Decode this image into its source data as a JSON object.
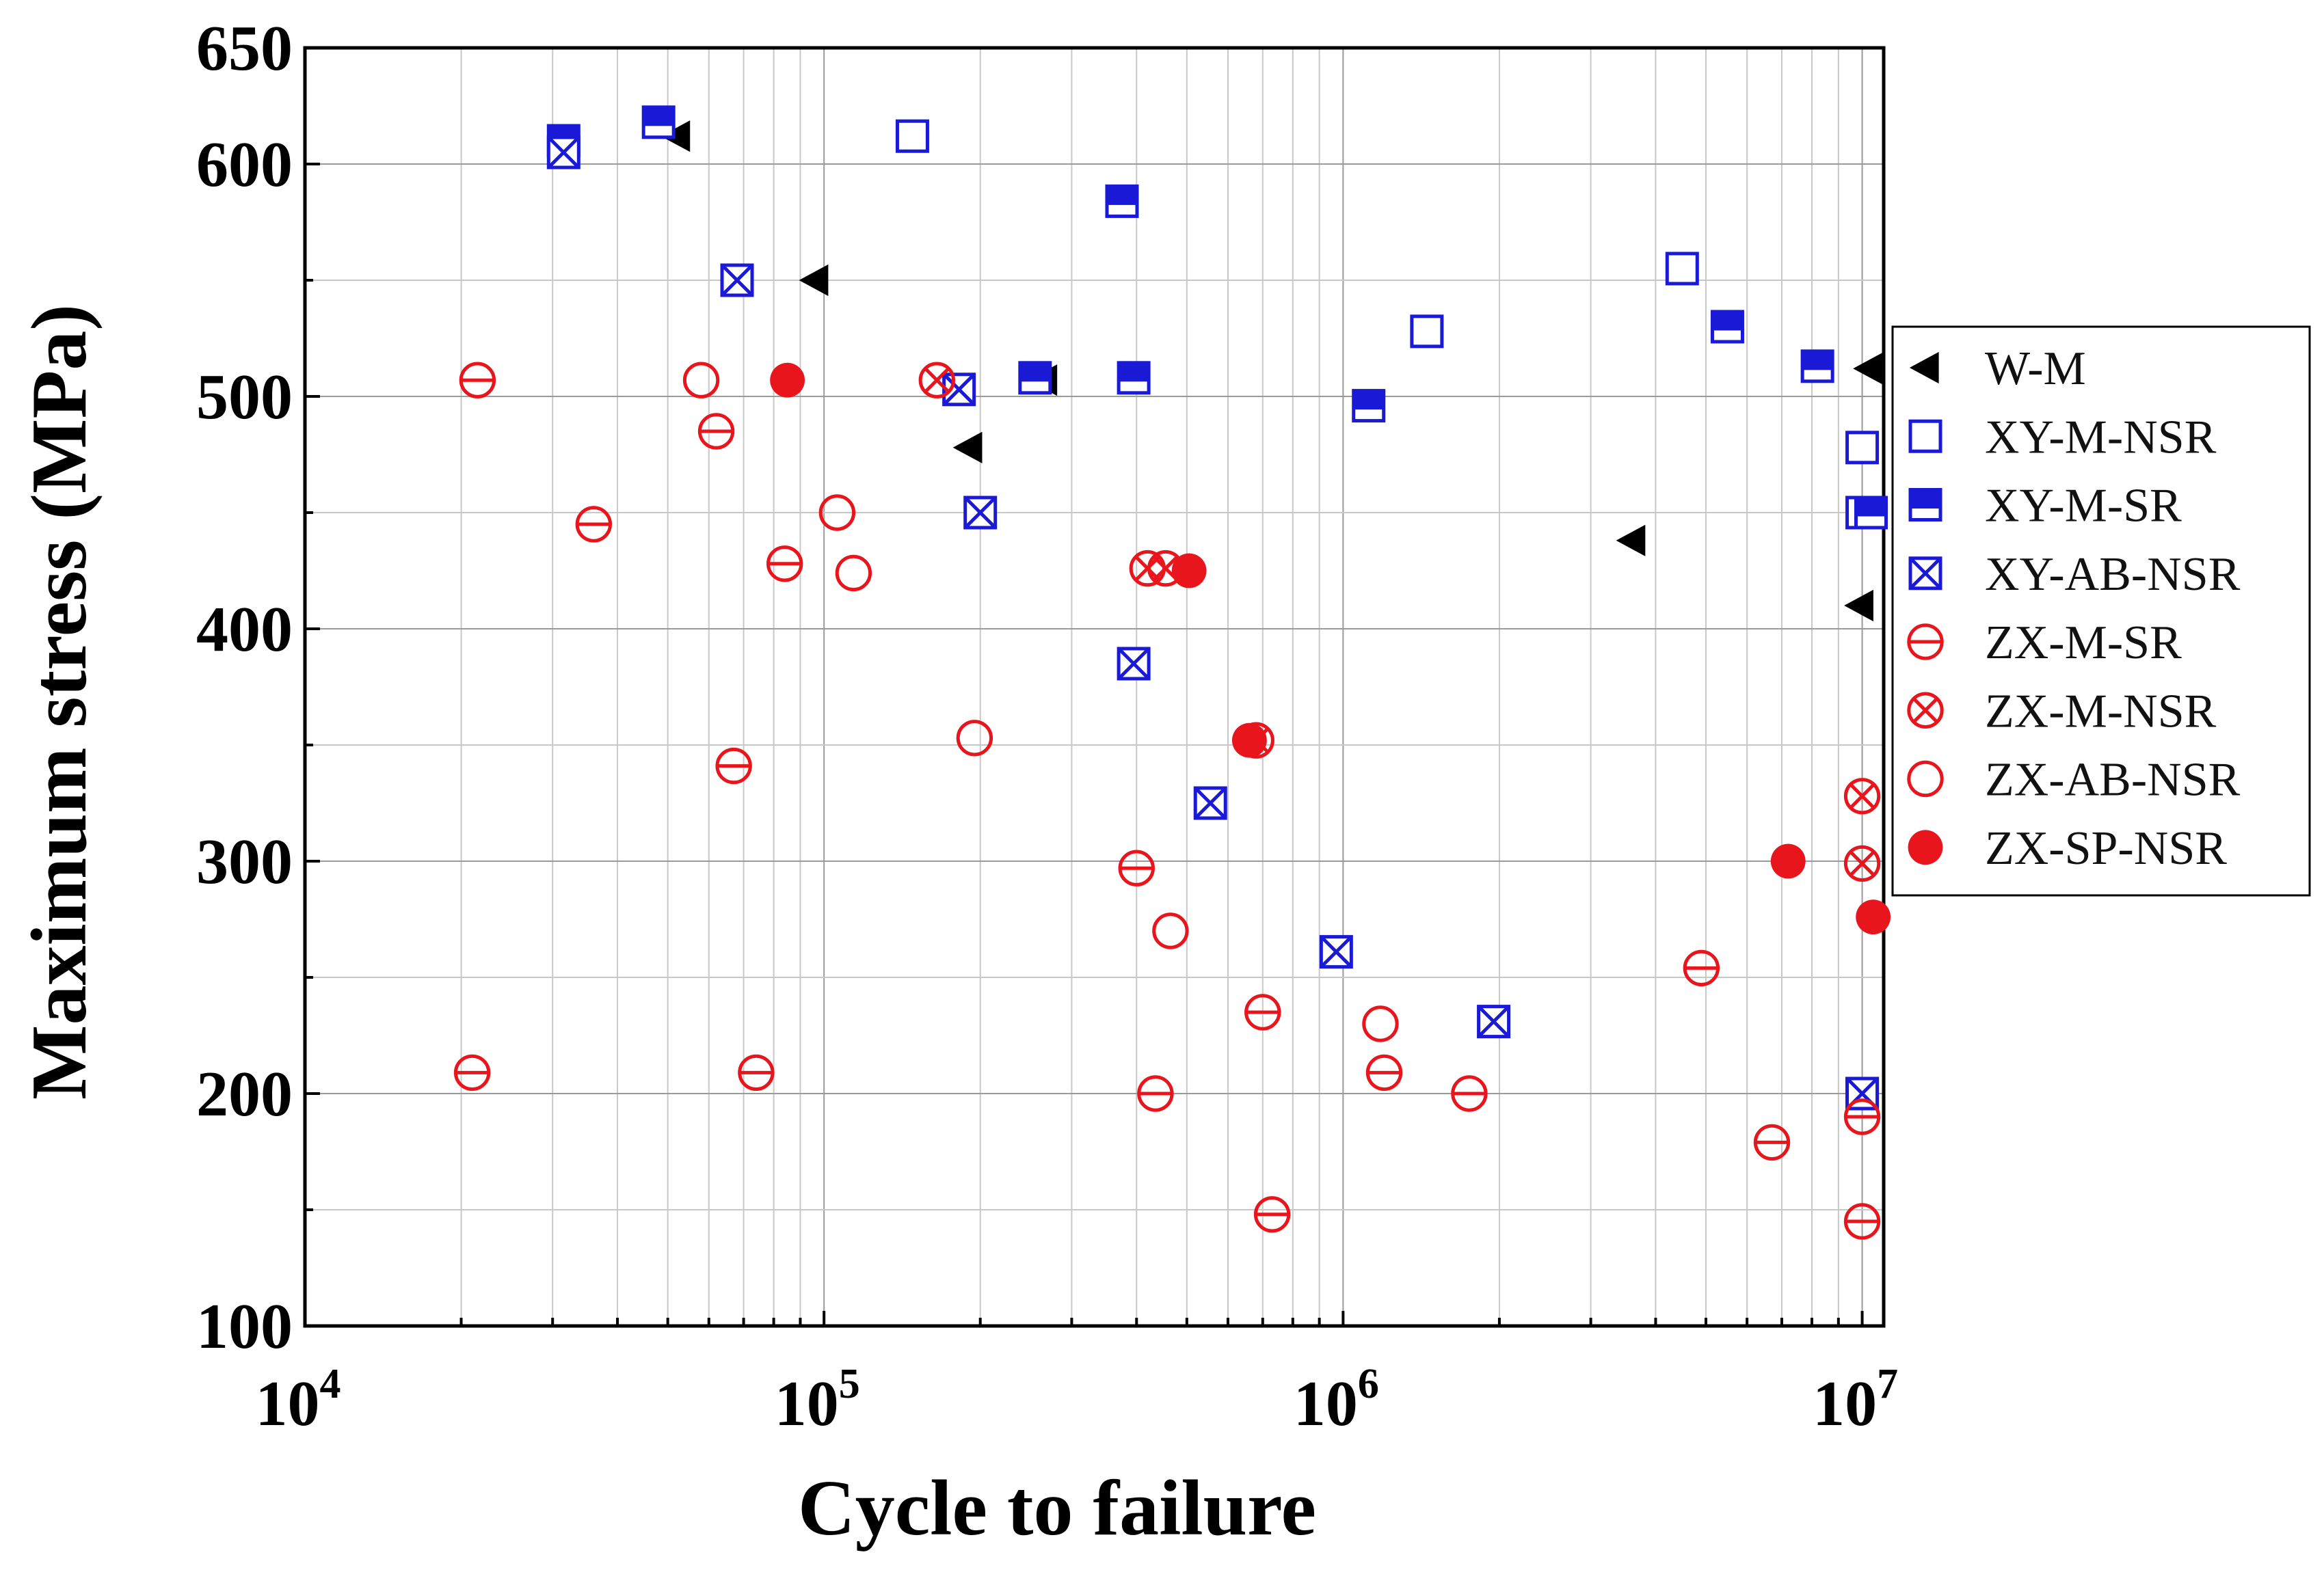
{
  "chart_data": {
    "type": "scatter",
    "title": "",
    "xlabel": "Cycle to failure",
    "ylabel": "Maximum stress (MPa)",
    "x_scale": "log",
    "xlim": [
      10000,
      11000000
    ],
    "ylim": [
      100,
      650
    ],
    "x_ticks": [
      {
        "value": 10000,
        "base": "10",
        "exp": "4"
      },
      {
        "value": 100000,
        "base": "10",
        "exp": "5"
      },
      {
        "value": 1000000,
        "base": "10",
        "exp": "6"
      },
      {
        "value": 10000000,
        "base": "10",
        "exp": "7"
      }
    ],
    "y_ticks": [
      {
        "value": 100,
        "label": "100"
      },
      {
        "value": 200,
        "label": "200"
      },
      {
        "value": 300,
        "label": "300"
      },
      {
        "value": 400,
        "label": "400"
      },
      {
        "value": 500,
        "label": "500"
      },
      {
        "value": 600,
        "label": "600"
      },
      {
        "value": 650,
        "label": "650"
      }
    ],
    "y_grid_minor": [
      150,
      250,
      350,
      450,
      550
    ],
    "grid": true,
    "legend_position": "right",
    "colors": {
      "black": "#000000",
      "blue": "#1a1ad6",
      "red": "#e8161c"
    },
    "series": [
      {
        "name": "W-M",
        "marker": "triangle-left",
        "color": "#000000",
        "points": [
          [
            52000,
            612
          ],
          [
            96000,
            550
          ],
          [
            190000,
            478
          ],
          [
            265000,
            507
          ],
          [
            3600000,
            438
          ],
          [
            9900000,
            410
          ],
          [
            10300000,
            512
          ]
        ]
      },
      {
        "name": "XY-M-NSR",
        "marker": "square-open",
        "color": "#1a1ad6",
        "points": [
          [
            148000,
            612
          ],
          [
            1450000,
            528
          ],
          [
            4500000,
            555
          ],
          [
            10000000,
            478
          ],
          [
            10000000,
            450
          ],
          [
            10000000,
            200
          ]
        ]
      },
      {
        "name": "XY-M-SR",
        "marker": "square-half",
        "color": "#1a1ad6",
        "points": [
          [
            31500,
            610
          ],
          [
            48000,
            618
          ],
          [
            375000,
            584
          ],
          [
            395000,
            508
          ],
          [
            255000,
            508
          ],
          [
            1120000,
            496
          ],
          [
            5500000,
            530
          ],
          [
            8200000,
            513
          ],
          [
            10400000,
            450
          ]
        ]
      },
      {
        "name": "XY-AB-NSR",
        "marker": "square-x",
        "color": "#1a1ad6",
        "points": [
          [
            31500,
            605
          ],
          [
            68000,
            550
          ],
          [
            182000,
            503
          ],
          [
            200000,
            450
          ],
          [
            395000,
            385
          ],
          [
            555000,
            325
          ],
          [
            970000,
            261
          ],
          [
            1950000,
            231
          ],
          [
            10000000,
            200
          ]
        ]
      },
      {
        "name": "ZX-M-SR",
        "marker": "circle-bar",
        "color": "#e8161c",
        "points": [
          [
            21500,
            507
          ],
          [
            36000,
            445
          ],
          [
            62000,
            485
          ],
          [
            67000,
            341
          ],
          [
            21000,
            209
          ],
          [
            74000,
            209
          ],
          [
            84000,
            428
          ],
          [
            400000,
            297
          ],
          [
            435000,
            200
          ],
          [
            700000,
            235
          ],
          [
            730000,
            148
          ],
          [
            1200000,
            209
          ],
          [
            1750000,
            200
          ],
          [
            4900000,
            254
          ],
          [
            6700000,
            179
          ],
          [
            10000000,
            190
          ],
          [
            10000000,
            145
          ]
        ]
      },
      {
        "name": "ZX-M-NSR",
        "marker": "circle-x",
        "color": "#e8161c",
        "points": [
          [
            165000,
            507
          ],
          [
            420000,
            426
          ],
          [
            455000,
            426
          ],
          [
            680000,
            352
          ],
          [
            10000000,
            328
          ],
          [
            10000000,
            299
          ]
        ]
      },
      {
        "name": "ZX-AB-NSR",
        "marker": "circle-open",
        "color": "#e8161c",
        "points": [
          [
            58000,
            507
          ],
          [
            106000,
            450
          ],
          [
            114000,
            424
          ],
          [
            195000,
            353
          ],
          [
            465000,
            270
          ],
          [
            1180000,
            230
          ]
        ]
      },
      {
        "name": "ZX-SP-NSR",
        "marker": "circle-filled",
        "color": "#e8161c",
        "points": [
          [
            85000,
            507
          ],
          [
            505000,
            425
          ],
          [
            660000,
            352
          ],
          [
            7200000,
            300
          ],
          [
            10500000,
            276
          ]
        ]
      }
    ]
  }
}
